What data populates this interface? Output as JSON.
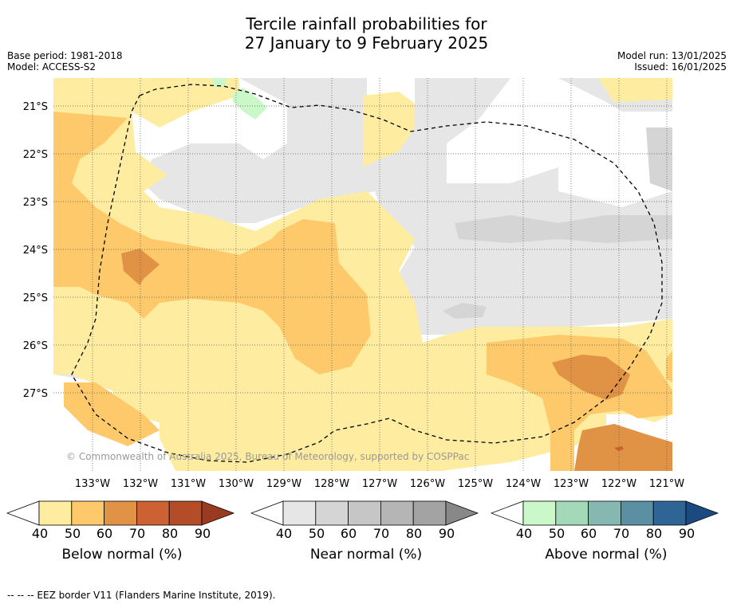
{
  "title_line1": "Tercile rainfall probabilities for",
  "title_line2": "27 January to 9 February 2025",
  "base_period": "Base period: 1981-2018",
  "model": "Model: ACCESS-S2",
  "model_run": "Model run: 13/01/2025",
  "issued": "Issued: 16/01/2025",
  "copyright": "© Commonwealth of Australia 2025, Bureau of Meteorology, supported by COSPPac",
  "lat_labels": [
    "21°S",
    "22°S",
    "23°S",
    "24°S",
    "25°S",
    "26°S",
    "27°S"
  ],
  "lon_labels": [
    "133°W",
    "132°W",
    "131°W",
    "130°W",
    "129°W",
    "128°W",
    "127°W",
    "126°W",
    "125°W",
    "124°W",
    "123°W",
    "122°W",
    "121°W"
  ],
  "colorbars": [
    {
      "title": "Below normal (%)",
      "ticks": [
        "40",
        "50",
        "60",
        "70",
        "80",
        "90"
      ],
      "colors": [
        "#ffffff",
        "#feeda0",
        "#fec96a",
        "#e09245",
        "#cc6233",
        "#b44c28",
        "#9a3a20"
      ]
    },
    {
      "title": "Near normal (%)",
      "ticks": [
        "40",
        "50",
        "60",
        "70",
        "80",
        "90"
      ],
      "colors": [
        "#ffffff",
        "#e6e6e6",
        "#d5d5d5",
        "#c6c6c6",
        "#b5b5b5",
        "#a3a3a3",
        "#888888"
      ]
    },
    {
      "title": "Above normal (%)",
      "ticks": [
        "40",
        "50",
        "60",
        "70",
        "80",
        "90"
      ],
      "colors": [
        "#ffffff",
        "#cbf8c8",
        "#a3d8b8",
        "#85b8b0",
        "#5a90a2",
        "#2f6595",
        "#1b4a80"
      ]
    }
  ],
  "footer": "--  --  -- EEZ border V11 (Flanders Marine Institute, 2019)."
}
